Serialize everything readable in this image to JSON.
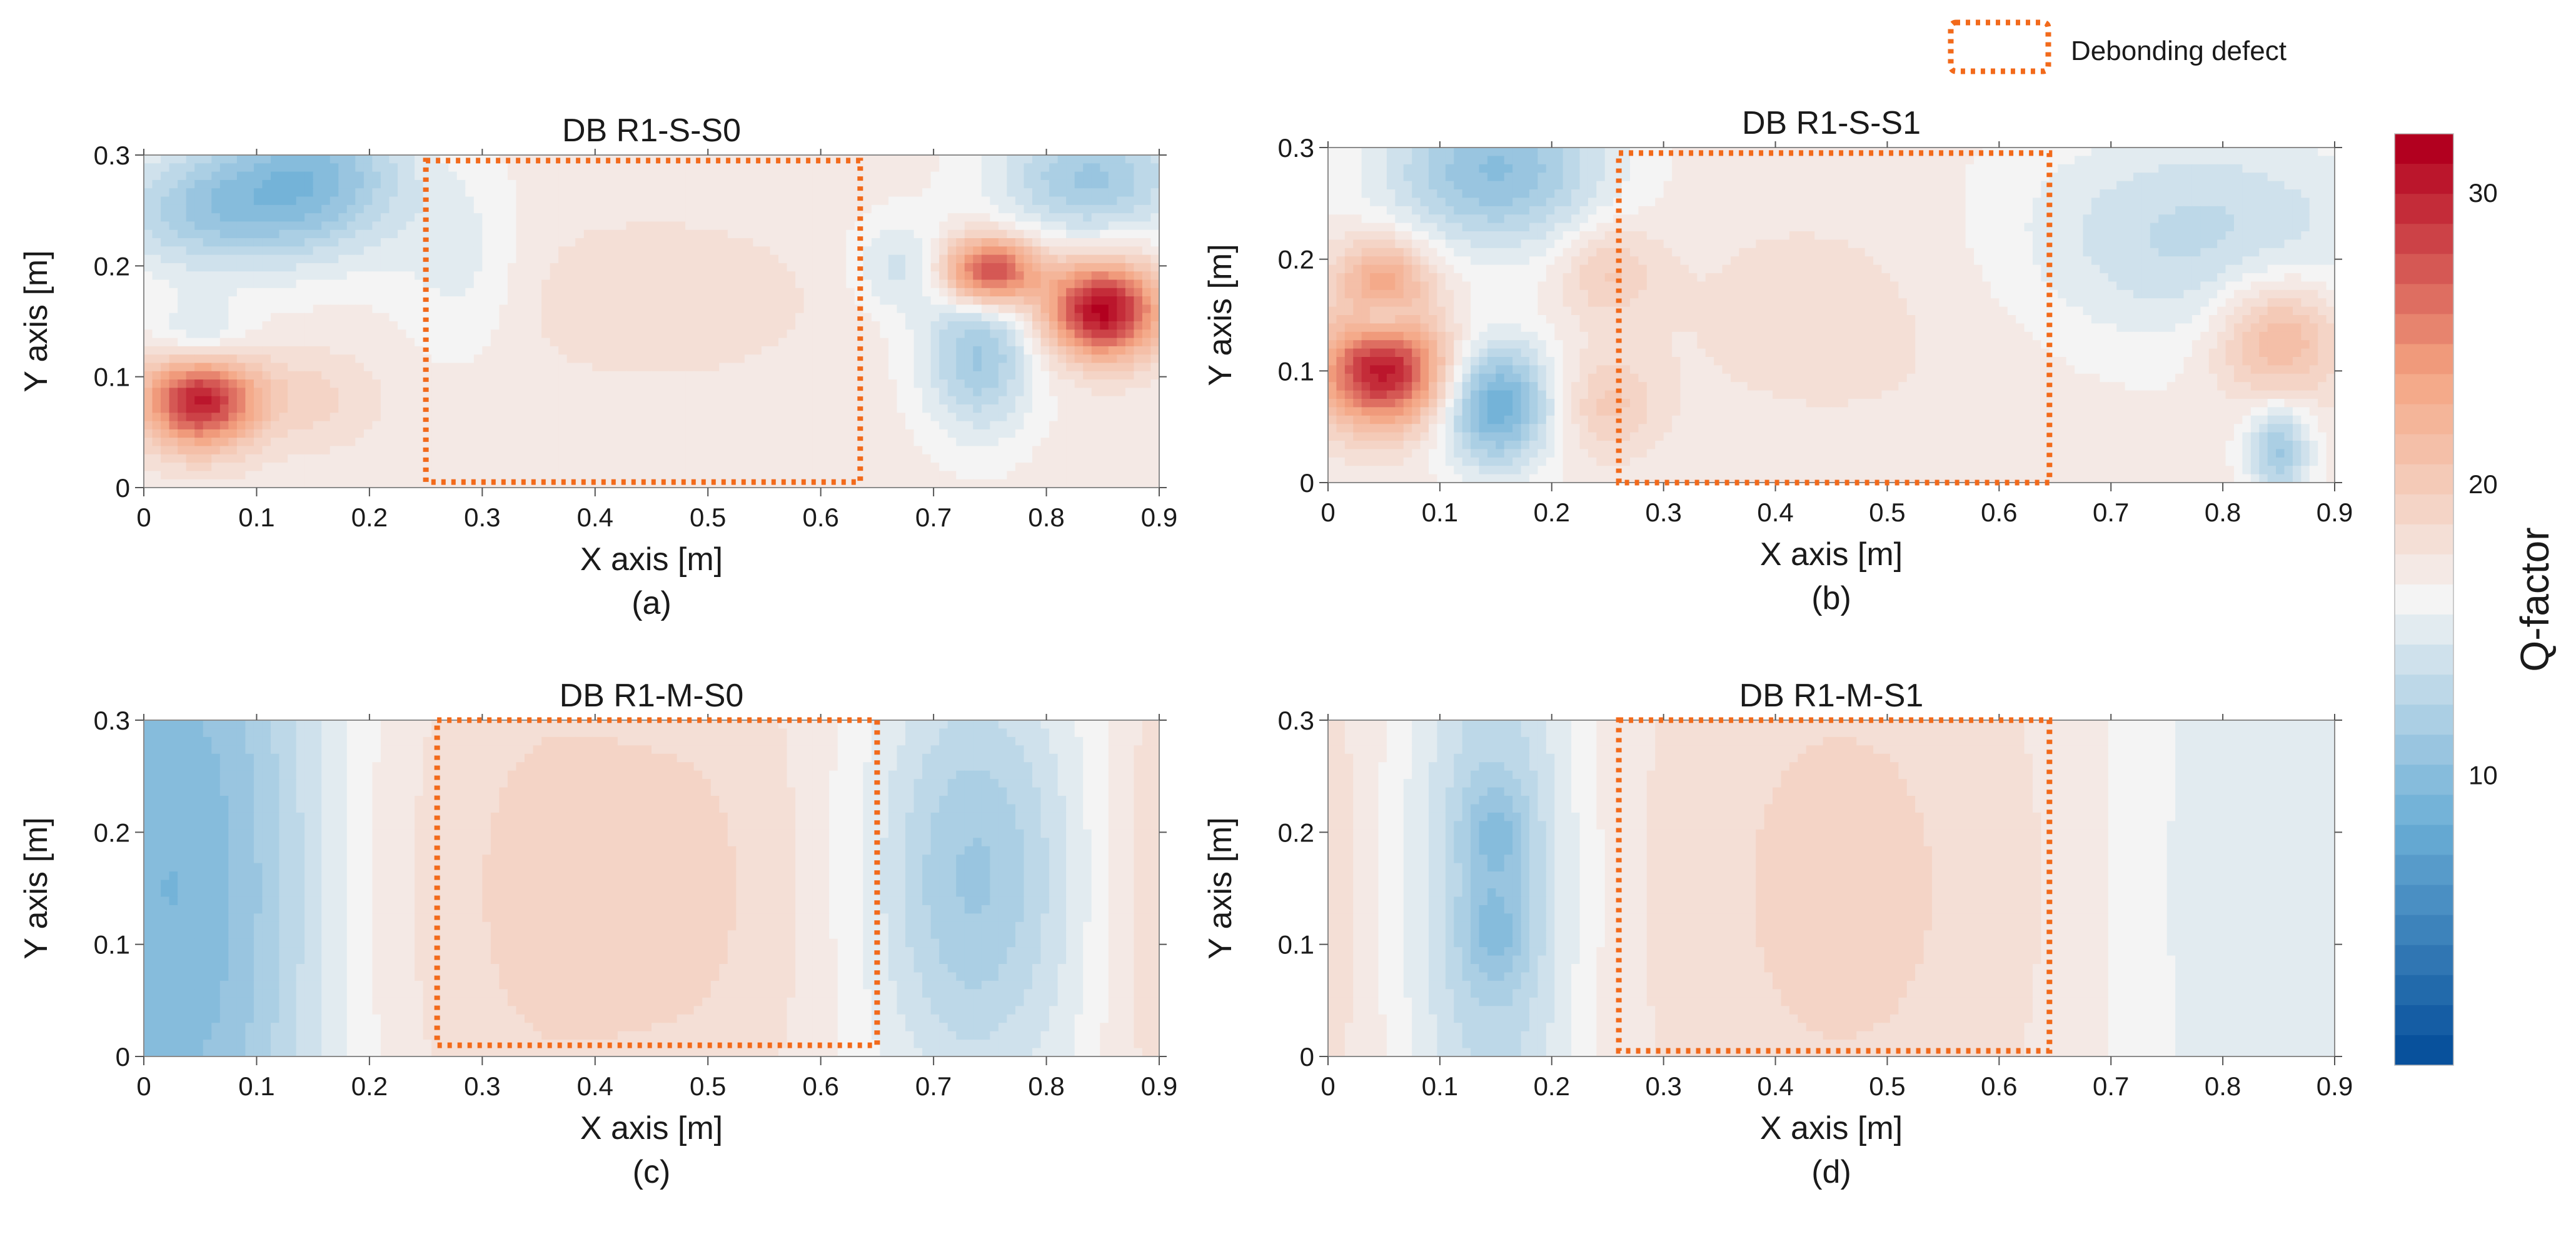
{
  "legend": {
    "label": "Debonding defect",
    "color": "#f26a1b"
  },
  "colorbar": {
    "label": "Q-factor",
    "min": 0,
    "max": 32,
    "ticks": [
      "30",
      "20",
      "10"
    ],
    "tick_values": [
      30,
      20,
      10
    ],
    "levels": 31,
    "colors": {
      "low": "#08519c",
      "mid": "#f4f4f4",
      "high": "#b2001f"
    }
  },
  "chart_data": [
    {
      "type": "heatmap",
      "panel": "a",
      "title": "DB R1-S-S0",
      "caption": "(a)",
      "xlabel": "X axis [m]",
      "ylabel": "Y axis [m]",
      "xlim": [
        0,
        0.9
      ],
      "ylim": [
        0,
        0.3
      ],
      "xticks": [
        "0",
        "0.1",
        "0.2",
        "0.3",
        "0.4",
        "0.5",
        "0.6",
        "0.7",
        "0.8",
        "0.9"
      ],
      "yticks": [
        "0",
        "0.1",
        "0.2",
        "0.3"
      ],
      "defect_region": {
        "x": [
          0.25,
          0.635
        ],
        "y": [
          0.005,
          0.295
        ]
      },
      "base": 17,
      "features": [
        {
          "x": 0.05,
          "y": 0.08,
          "amp": 14,
          "sx": 0.035,
          "sy": 0.03
        },
        {
          "x": 0.15,
          "y": 0.08,
          "amp": 2,
          "sx": 0.04,
          "sy": 0.03
        },
        {
          "x": 0.75,
          "y": 0.195,
          "amp": 13,
          "sx": 0.03,
          "sy": 0.022
        },
        {
          "x": 0.85,
          "y": 0.16,
          "amp": 15,
          "sx": 0.035,
          "sy": 0.03
        },
        {
          "x": 0.15,
          "y": 0.28,
          "amp": -7,
          "sx": 0.06,
          "sy": 0.05
        },
        {
          "x": 0.05,
          "y": 0.25,
          "amp": -5,
          "sx": 0.06,
          "sy": 0.04
        },
        {
          "x": 0.84,
          "y": 0.28,
          "amp": -6,
          "sx": 0.06,
          "sy": 0.04
        },
        {
          "x": 0.74,
          "y": 0.12,
          "amp": -6,
          "sx": 0.035,
          "sy": 0.05
        },
        {
          "x": 0.67,
          "y": 0.2,
          "amp": -3,
          "sx": 0.03,
          "sy": 0.03
        },
        {
          "x": 0.05,
          "y": 0.13,
          "amp": -4,
          "sx": 0.03,
          "sy": 0.025
        },
        {
          "x": 0.45,
          "y": 0.17,
          "amp": 1.5,
          "sx": 0.1,
          "sy": 0.05
        },
        {
          "x": 0.28,
          "y": 0.2,
          "amp": -2,
          "sx": 0.04,
          "sy": 0.06
        }
      ]
    },
    {
      "type": "heatmap",
      "panel": "b",
      "title": "DB R1-S-S1",
      "caption": "(b)",
      "xlabel": "X axis [m]",
      "ylabel": "Y axis [m]",
      "xlim": [
        0,
        0.9
      ],
      "ylim": [
        0,
        0.3
      ],
      "xticks": [
        "0",
        "0.1",
        "0.2",
        "0.3",
        "0.4",
        "0.5",
        "0.6",
        "0.7",
        "0.8",
        "0.9"
      ],
      "yticks": [
        "0",
        "0.1",
        "0.2",
        "0.3"
      ],
      "defect_region": {
        "x": [
          0.26,
          0.645
        ],
        "y": [
          0.0,
          0.295
        ]
      },
      "base": 17,
      "features": [
        {
          "x": 0.05,
          "y": 0.1,
          "amp": 14,
          "sx": 0.04,
          "sy": 0.035
        },
        {
          "x": 0.05,
          "y": 0.185,
          "amp": 6,
          "sx": 0.03,
          "sy": 0.025
        },
        {
          "x": 0.15,
          "y": 0.07,
          "amp": -9,
          "sx": 0.035,
          "sy": 0.04
        },
        {
          "x": 0.15,
          "y": 0.28,
          "amp": -7,
          "sx": 0.07,
          "sy": 0.05
        },
        {
          "x": 0.25,
          "y": 0.19,
          "amp": 3,
          "sx": 0.03,
          "sy": 0.03
        },
        {
          "x": 0.25,
          "y": 0.07,
          "amp": 3,
          "sx": 0.03,
          "sy": 0.03
        },
        {
          "x": 0.85,
          "y": 0.13,
          "amp": 6,
          "sx": 0.04,
          "sy": 0.04
        },
        {
          "x": 0.85,
          "y": 0.03,
          "amp": -6,
          "sx": 0.02,
          "sy": 0.03
        },
        {
          "x": 0.78,
          "y": 0.22,
          "amp": -4,
          "sx": 0.12,
          "sy": 0.07
        },
        {
          "x": 0.05,
          "y": 0.145,
          "amp": -4,
          "sx": 0.02,
          "sy": 0.015
        },
        {
          "x": 0.45,
          "y": 0.15,
          "amp": 1,
          "sx": 0.12,
          "sy": 0.08
        }
      ]
    },
    {
      "type": "heatmap",
      "panel": "c",
      "title": "DB R1-M-S0",
      "caption": "(c)",
      "xlabel": "X axis [m]",
      "ylabel": "Y axis [m]",
      "xlim": [
        0,
        0.9
      ],
      "ylim": [
        0,
        0.3
      ],
      "xticks": [
        "0",
        "0.1",
        "0.2",
        "0.3",
        "0.4",
        "0.5",
        "0.6",
        "0.7",
        "0.8",
        "0.9"
      ],
      "yticks": [
        "0",
        "0.1",
        "0.2",
        "0.3"
      ],
      "defect_region": {
        "x": [
          0.26,
          0.65
        ],
        "y": [
          0.01,
          0.3
        ]
      },
      "base": 16,
      "features": [
        {
          "x": 0.0,
          "y": 0.15,
          "amp": -6,
          "sx": 0.07,
          "sy": 0.3
        },
        {
          "x": 0.1,
          "y": 0.15,
          "amp": -3,
          "sx": 0.06,
          "sy": 0.3
        },
        {
          "x": 0.36,
          "y": 0.15,
          "amp": 3,
          "sx": 0.12,
          "sy": 0.25
        },
        {
          "x": 0.53,
          "y": 0.15,
          "amp": 1.5,
          "sx": 0.07,
          "sy": 0.22
        },
        {
          "x": 0.735,
          "y": 0.16,
          "amp": -5,
          "sx": 0.06,
          "sy": 0.13
        },
        {
          "x": 0.89,
          "y": 0.15,
          "amp": 2,
          "sx": 0.035,
          "sy": 0.3
        }
      ]
    },
    {
      "type": "heatmap",
      "panel": "d",
      "title": "DB R1-M-S1",
      "caption": "(d)",
      "xlabel": "X axis [m]",
      "ylabel": "Y axis [m]",
      "xlim": [
        0,
        0.9
      ],
      "ylim": [
        0,
        0.3
      ],
      "xticks": [
        "0",
        "0.1",
        "0.2",
        "0.3",
        "0.4",
        "0.5",
        "0.6",
        "0.7",
        "0.8",
        "0.9"
      ],
      "yticks": [
        "0",
        "0.1",
        "0.2",
        "0.3"
      ],
      "defect_region": {
        "x": [
          0.26,
          0.645
        ],
        "y": [
          0.005,
          0.3
        ]
      },
      "base": 16.5,
      "features": [
        {
          "x": 0.15,
          "y": 0.15,
          "amp": -5,
          "sx": 0.05,
          "sy": 0.2
        },
        {
          "x": 0.15,
          "y": 0.2,
          "amp": -2.5,
          "sx": 0.02,
          "sy": 0.03
        },
        {
          "x": 0.15,
          "y": 0.11,
          "amp": -2.5,
          "sx": 0.02,
          "sy": 0.03
        },
        {
          "x": 0.46,
          "y": 0.15,
          "amp": 2.5,
          "sx": 0.15,
          "sy": 0.25
        },
        {
          "x": 0.0,
          "y": 0.15,
          "amp": 1.5,
          "sx": 0.035,
          "sy": 0.3
        },
        {
          "x": 0.82,
          "y": 0.15,
          "amp": -2,
          "sx": 0.08,
          "sy": 0.3
        }
      ]
    }
  ]
}
